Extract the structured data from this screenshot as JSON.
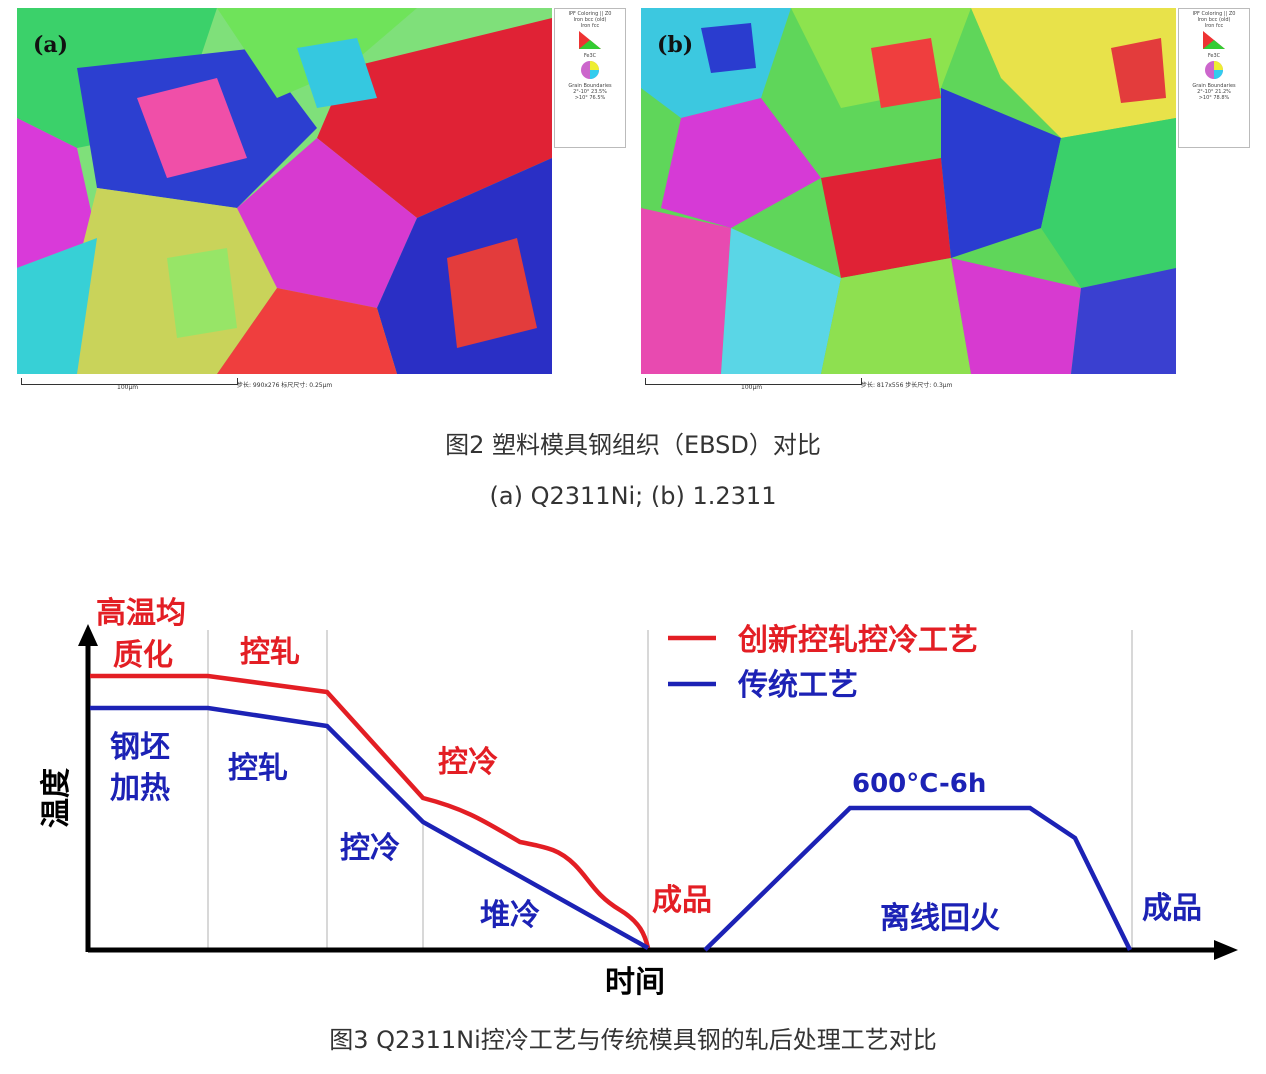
{
  "figure2": {
    "caption": "图2 塑料模具钢组织（EBSD）对比",
    "subcaption": "(a) Q2311Ni; (b) 1.2311",
    "panels": [
      {
        "label": "(a)",
        "legend": [
          "IPF Coloring || Z0",
          "Iron bcc (old)",
          "Iron fcc",
          "Fe3C",
          "Grain Boundaries",
          "2°-10°  23.5%",
          ">10°  76.5%"
        ],
        "scalebar": "100μm",
        "info": "步长: 990x276  标尺尺寸: 0.25μm"
      },
      {
        "label": "(b)",
        "legend": [
          "IPF Coloring || Z0",
          "Iron bcc (old)",
          "Iron fcc",
          "Fe3C",
          "Grain Boundaries",
          "2°-10°  21.2%",
          ">10°  78.8%"
        ],
        "scalebar": "100μm",
        "info": "步长: 817x556  步长尺寸: 0.3μm"
      }
    ]
  },
  "figure3": {
    "caption": "图3 Q2311Ni控冷工艺与传统模具钢的轧后处理工艺对比",
    "chart_data": {
      "type": "line",
      "ylabel": "温度",
      "xlabel": "时间",
      "series": [
        {
          "name": "创新控轧控冷工艺",
          "color": "#e31e24"
        },
        {
          "name": "传统工艺",
          "color": "#1c22b5"
        }
      ],
      "stages_top_red": [
        "高温均质化",
        "控轧",
        "控冷"
      ],
      "stages_blue": [
        "钢坯加热",
        "控轧",
        "控冷",
        "堆冷"
      ],
      "product_label_1": "成品",
      "tempering_label": "离线回火",
      "tempering_condition": "600°C-6h",
      "product_label_2": "成品"
    },
    "labels": {
      "red_stage1_line1": "高温均",
      "red_stage1_line2": "质化",
      "red_stage2": "控轧",
      "red_stage3": "控冷",
      "blue_stage1_line1": "钢坯",
      "blue_stage1_line2": "加热",
      "blue_stage2": "控轧",
      "blue_stage3": "控冷",
      "blue_stage4": "堆冷",
      "product1": "成品",
      "tempering": "离线回火",
      "temper_cond": "600°C-6h",
      "product2": "成品",
      "legend_red": "创新控轧控冷工艺",
      "legend_blue": "传统工艺",
      "ylabel": "温度",
      "xlabel": "时间"
    }
  }
}
